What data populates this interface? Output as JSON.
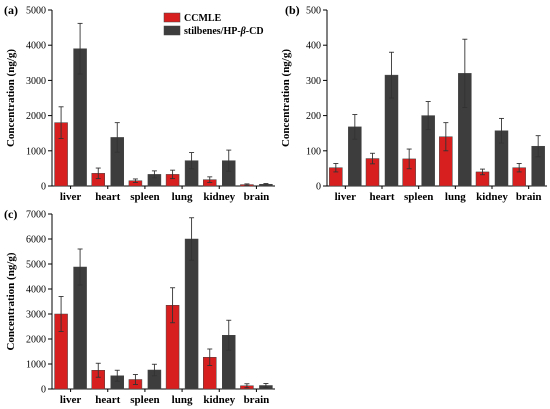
{
  "legend": {
    "series": [
      {
        "name": "CCMLE",
        "color": "#d81f1f"
      },
      {
        "name": "stilbenes/HP-β-CD",
        "color": "#3d3d3d",
        "name_plain": "stilbenes/HP-",
        "name_italic": "β",
        "name_tail": "-CD"
      }
    ]
  },
  "chart_data": [
    {
      "panel_label": "(a)",
      "type": "bar",
      "categories": [
        "liver",
        "heart",
        "spleen",
        "lung",
        "kidney",
        "brain"
      ],
      "ylabel": "Concentration (ng/g)",
      "ylim": [
        0,
        5000
      ],
      "yticks": [
        0,
        1000,
        2000,
        3000,
        4000,
        5000
      ],
      "series": [
        {
          "name": "CCMLE",
          "color": "#d81f1f",
          "values": [
            1800,
            360,
            150,
            330,
            180,
            40
          ],
          "errors": [
            450,
            150,
            50,
            120,
            80,
            20
          ]
        },
        {
          "name": "stilbenes/HP-β-CD",
          "color": "#3d3d3d",
          "values": [
            3900,
            1380,
            330,
            720,
            720,
            50
          ],
          "errors": [
            720,
            420,
            100,
            230,
            300,
            20
          ]
        }
      ]
    },
    {
      "panel_label": "(b)",
      "type": "bar",
      "categories": [
        "liver",
        "heart",
        "spleen",
        "lung",
        "kidney",
        "brain"
      ],
      "ylabel": "Concentration (ng/g)",
      "ylim": [
        0,
        500
      ],
      "yticks": [
        0,
        100,
        200,
        300,
        400,
        500
      ],
      "series": [
        {
          "name": "CCMLE",
          "color": "#d81f1f",
          "values": [
            52,
            78,
            77,
            140,
            40,
            52
          ],
          "errors": [
            12,
            15,
            28,
            40,
            8,
            12
          ]
        },
        {
          "name": "stilbenes/HP-β-CD",
          "color": "#3d3d3d",
          "values": [
            168,
            315,
            200,
            320,
            157,
            113
          ],
          "errors": [
            35,
            65,
            40,
            97,
            35,
            30
          ]
        }
      ]
    },
    {
      "panel_label": "(c)",
      "type": "bar",
      "categories": [
        "liver",
        "heart",
        "spleen",
        "lung",
        "kidney",
        "brain"
      ],
      "ylabel": "Concentration (ng/g)",
      "ylim": [
        0,
        7000
      ],
      "yticks": [
        0,
        1000,
        2000,
        3000,
        4000,
        5000,
        6000,
        7000
      ],
      "series": [
        {
          "name": "CCMLE",
          "color": "#d81f1f",
          "values": [
            3000,
            750,
            380,
            3350,
            1270,
            130
          ],
          "errors": [
            700,
            280,
            200,
            700,
            330,
            80
          ]
        },
        {
          "name": "stilbenes/HP-β-CD",
          "color": "#3d3d3d",
          "values": [
            4880,
            530,
            760,
            6000,
            2150,
            140
          ],
          "errors": [
            720,
            220,
            230,
            850,
            600,
            80
          ]
        }
      ]
    }
  ]
}
